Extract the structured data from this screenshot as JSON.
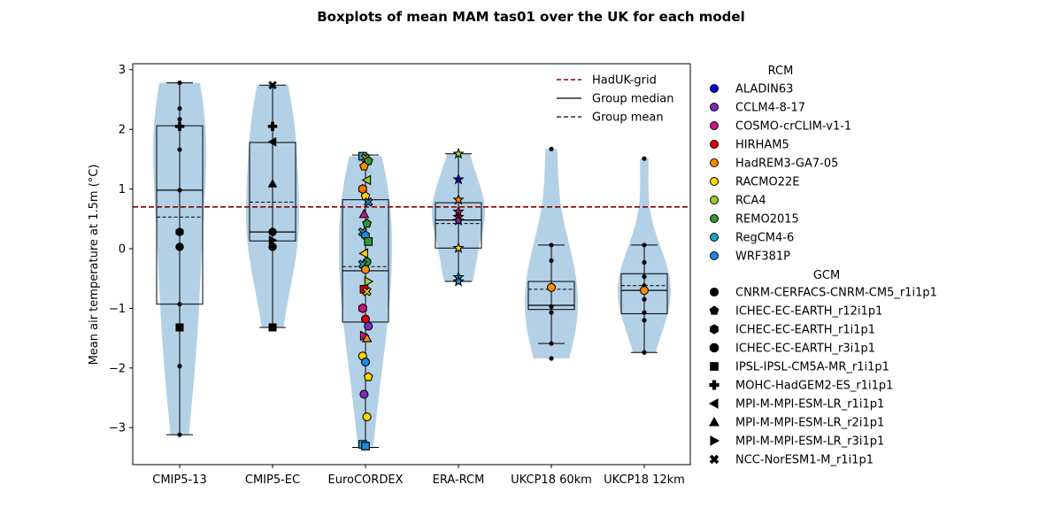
{
  "chart_data": {
    "type": "boxplot-violin",
    "title": "Boxplots of mean MAM tas01 over the UK for each model",
    "ylabel": "Mean air temperature at 1.5m (°C)",
    "xlabel": "",
    "ylim": [
      -3.62,
      3.1
    ],
    "yticks": [
      -3,
      -2,
      -1,
      0,
      1,
      2,
      3
    ],
    "categories": [
      "CMIP5-13",
      "CMIP5-EC",
      "EuroCORDEX",
      "ERA-RCM",
      "UKCP18 60km",
      "UKCP18 12km"
    ],
    "reference_line": {
      "name": "HadUK-grid",
      "value": 0.7,
      "color": "#8b0000"
    },
    "groups": [
      {
        "name": "CMIP5-13",
        "whisker": [
          -3.12,
          2.78
        ],
        "q1": -0.93,
        "q3": 2.06,
        "median": 0.98,
        "mean": 0.53,
        "points": [
          {
            "y": 2.78,
            "m": "dot"
          },
          {
            "y": 2.35,
            "m": "dot"
          },
          {
            "y": 2.17,
            "m": "dot"
          },
          {
            "y": 2.05,
            "m": "plus"
          },
          {
            "y": 1.66,
            "m": "dot"
          },
          {
            "y": 0.98,
            "m": "dot"
          },
          {
            "y": 0.28,
            "m": "hexagon"
          },
          {
            "y": 0.03,
            "m": "circle"
          },
          {
            "y": -0.93,
            "m": "dot"
          },
          {
            "y": -1.32,
            "m": "square"
          },
          {
            "y": -1.97,
            "m": "dot"
          },
          {
            "y": -3.12,
            "m": "dot"
          }
        ]
      },
      {
        "name": "CMIP5-EC",
        "whisker": [
          -1.32,
          2.74
        ],
        "q1": 0.13,
        "q3": 1.78,
        "median": 0.28,
        "mean": 0.78,
        "points": [
          {
            "y": 2.74,
            "m": "x"
          },
          {
            "y": 2.05,
            "m": "plus"
          },
          {
            "y": 1.79,
            "m": "tri-left"
          },
          {
            "y": 1.09,
            "m": "tri-up"
          },
          {
            "y": 0.28,
            "m": "circle"
          },
          {
            "y": 0.14,
            "m": "tri-right"
          },
          {
            "y": 0.03,
            "m": "circle"
          },
          {
            "y": -1.32,
            "m": "square"
          }
        ]
      },
      {
        "name": "EuroCORDEX",
        "whisker": [
          -3.33,
          1.57
        ],
        "q1": -1.23,
        "q3": 0.82,
        "median": -0.37,
        "mean": -0.3,
        "points": [
          {
            "y": 1.55,
            "m": "square",
            "c": "#1ca7c2"
          },
          {
            "y": 1.52,
            "m": "x",
            "c": "#ff8c00"
          },
          {
            "y": 1.47,
            "m": "pentagon",
            "c": "#2e9a2e"
          },
          {
            "y": 1.38,
            "m": "pentagon",
            "c": "#ff8c00"
          },
          {
            "y": 1.15,
            "m": "tri-left",
            "c": "#9acd32"
          },
          {
            "y": 1.0,
            "m": "hexagon",
            "c": "#ff6f00"
          },
          {
            "y": 0.88,
            "m": "pentagon",
            "c": "#ffd700"
          },
          {
            "y": 0.78,
            "m": "x",
            "c": "#1e88e5"
          },
          {
            "y": 0.58,
            "m": "tri-up",
            "c": "#c71585"
          },
          {
            "y": 0.42,
            "m": "pentagon",
            "c": "#2e9a2e"
          },
          {
            "y": 0.28,
            "m": "x",
            "c": "#1ca7c2"
          },
          {
            "y": 0.22,
            "m": "hexagon",
            "c": "#1e88e5"
          },
          {
            "y": 0.12,
            "m": "square",
            "c": "#2e9a2e"
          },
          {
            "y": -0.08,
            "m": "tri-left",
            "c": "#ffd700"
          },
          {
            "y": -0.22,
            "m": "circle",
            "c": "#2e9a2e"
          },
          {
            "y": -0.26,
            "m": "x",
            "c": "#1ca7c2"
          },
          {
            "y": -0.35,
            "m": "circle",
            "c": "#ff8c00"
          },
          {
            "y": -0.55,
            "m": "tri-right",
            "c": "#9acd32"
          },
          {
            "y": -0.68,
            "m": "square",
            "c": "#e00000"
          },
          {
            "y": -0.72,
            "m": "x",
            "c": "#ffd700"
          },
          {
            "y": -1.0,
            "m": "hexagon",
            "c": "#c71585"
          },
          {
            "y": -1.18,
            "m": "circle",
            "c": "#e00000"
          },
          {
            "y": -1.3,
            "m": "circle",
            "c": "#7b2cbf"
          },
          {
            "y": -1.46,
            "m": "tri-right",
            "c": "#c71585"
          },
          {
            "y": -1.5,
            "m": "tri-up",
            "c": "#ff8c00"
          },
          {
            "y": -1.8,
            "m": "circle",
            "c": "#ffd700"
          },
          {
            "y": -1.9,
            "m": "circle",
            "c": "#1e88e5"
          },
          {
            "y": -2.15,
            "m": "pentagon",
            "c": "#ffd700"
          },
          {
            "y": -2.44,
            "m": "circle",
            "c": "#7b2cbf"
          },
          {
            "y": -2.82,
            "m": "circle",
            "c": "#ffd700"
          },
          {
            "y": -3.28,
            "m": "square",
            "c": "#1ca7c2"
          },
          {
            "y": -3.31,
            "m": "square",
            "c": "#1e88e5"
          }
        ]
      },
      {
        "name": "ERA-RCM",
        "whisker": [
          -0.55,
          1.59
        ],
        "q1": 0.01,
        "q3": 0.77,
        "median": 0.48,
        "mean": 0.42,
        "points": [
          {
            "y": 1.59,
            "m": "star",
            "c": "#9acd32"
          },
          {
            "y": 1.16,
            "m": "star",
            "c": "#0000cd"
          },
          {
            "y": 0.82,
            "m": "star",
            "c": "#ff8c00"
          },
          {
            "y": 0.62,
            "m": "star",
            "c": "#c71585"
          },
          {
            "y": 0.53,
            "m": "star",
            "c": "#e00000"
          },
          {
            "y": 0.47,
            "m": "star",
            "c": "#7b2cbf"
          },
          {
            "y": 0.01,
            "m": "star",
            "c": "#ffd700"
          },
          {
            "y": -0.48,
            "m": "star",
            "c": "#1ca7c2"
          },
          {
            "y": -0.55,
            "m": "star",
            "c": "#1e88e5"
          }
        ]
      },
      {
        "name": "UKCP18 60km",
        "whisker": [
          -1.59,
          0.06
        ],
        "q1": -1.02,
        "q3": -0.55,
        "median": -0.95,
        "mean": -0.68,
        "points": [
          {
            "y": 1.67,
            "m": "dot"
          },
          {
            "y": 0.06,
            "m": "dot"
          },
          {
            "y": -0.2,
            "m": "dot"
          },
          {
            "y": -0.65,
            "m": "circle",
            "c": "#ff8c00"
          },
          {
            "y": -0.97,
            "m": "dot"
          },
          {
            "y": -1.07,
            "m": "dot"
          },
          {
            "y": -1.59,
            "m": "dot"
          },
          {
            "y": -1.84,
            "m": "dot"
          }
        ]
      },
      {
        "name": "UKCP18 12km",
        "whisker": [
          -1.74,
          0.06
        ],
        "q1": -1.09,
        "q3": -0.42,
        "median": -0.7,
        "mean": -0.62,
        "points": [
          {
            "y": 1.51,
            "m": "dot"
          },
          {
            "y": 0.06,
            "m": "dot"
          },
          {
            "y": -0.23,
            "m": "dot"
          },
          {
            "y": -0.47,
            "m": "dot"
          },
          {
            "y": -0.62,
            "m": "dot"
          },
          {
            "y": -0.7,
            "m": "circle",
            "c": "#ff8c00"
          },
          {
            "y": -0.85,
            "m": "dot"
          },
          {
            "y": -1.07,
            "m": "dot"
          },
          {
            "y": -1.2,
            "m": "dot"
          },
          {
            "y": -1.74,
            "m": "dot"
          }
        ]
      }
    ],
    "violin_color": "#b3d1e6",
    "legend_lines": [
      {
        "label": "HadUK-grid",
        "style": "dashed",
        "color": "#8b0000"
      },
      {
        "label": "Group median",
        "style": "solid",
        "color": "#000000"
      },
      {
        "label": "Group mean",
        "style": "dashed",
        "color": "#000000"
      }
    ],
    "legend_rcm_title": "RCM",
    "legend_rcm": [
      {
        "label": "ALADIN63",
        "color": "#0000cd"
      },
      {
        "label": "CCLM4-8-17",
        "color": "#7b2cbf"
      },
      {
        "label": "COSMO-crCLIM-v1-1",
        "color": "#c71585"
      },
      {
        "label": "HIRHAM5",
        "color": "#e00000"
      },
      {
        "label": "HadREM3-GA7-05",
        "color": "#ff8c00"
      },
      {
        "label": "RACMO22E",
        "color": "#ffd700"
      },
      {
        "label": "RCA4",
        "color": "#9acd32"
      },
      {
        "label": "REMO2015",
        "color": "#2e9a2e"
      },
      {
        "label": "RegCM4-6",
        "color": "#1ca7c2"
      },
      {
        "label": "WRF381P",
        "color": "#1e88e5"
      }
    ],
    "legend_gcm_title": "GCM",
    "legend_gcm": [
      {
        "label": "CNRM-CERFACS-CNRM-CM5_r1i1p1",
        "marker": "circle"
      },
      {
        "label": "ICHEC-EC-EARTH_r12i1p1",
        "marker": "pentagon"
      },
      {
        "label": "ICHEC-EC-EARTH_r1i1p1",
        "marker": "hexagon"
      },
      {
        "label": "ICHEC-EC-EARTH_r3i1p1",
        "marker": "octagon"
      },
      {
        "label": "IPSL-IPSL-CM5A-MR_r1i1p1",
        "marker": "square"
      },
      {
        "label": "MOHC-HadGEM2-ES_r1i1p1",
        "marker": "plus"
      },
      {
        "label": "MPI-M-MPI-ESM-LR_r1i1p1",
        "marker": "tri-left"
      },
      {
        "label": "MPI-M-MPI-ESM-LR_r2i1p1",
        "marker": "tri-up"
      },
      {
        "label": "MPI-M-MPI-ESM-LR_r3i1p1",
        "marker": "tri-right"
      },
      {
        "label": "NCC-NorESM1-M_r1i1p1",
        "marker": "x"
      }
    ]
  }
}
